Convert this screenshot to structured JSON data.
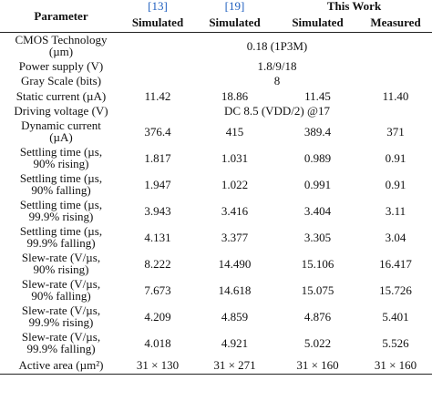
{
  "header": {
    "parameter_label": "Parameter",
    "ref1": "[13]",
    "ref2": "[19]",
    "this_work": "This Work",
    "col_labels": [
      "Simulated",
      "Simulated",
      "Simulated",
      "Measured"
    ]
  },
  "rows": [
    {
      "param": [
        "CMOS Technology",
        "(µm)"
      ],
      "span": "0.18 (1P3M)"
    },
    {
      "param": [
        "Power supply (V)"
      ],
      "span": "1.8/9/18"
    },
    {
      "param": [
        "Gray Scale (bits)"
      ],
      "span": "8"
    },
    {
      "param": [
        "Static current (µA)"
      ],
      "values": [
        "11.42",
        "18.86",
        "11.45",
        "11.40"
      ]
    },
    {
      "param": [
        "Driving voltage (V)"
      ],
      "span": "DC 8.5 (VDD/2) @17"
    },
    {
      "param": [
        "Dynamic current",
        "(µA)"
      ],
      "values": [
        "376.4",
        "415",
        "389.4",
        "371"
      ]
    },
    {
      "param": [
        "Settling time (µs,",
        "90% rising)"
      ],
      "values": [
        "1.817",
        "1.031",
        "0.989",
        "0.91"
      ]
    },
    {
      "param": [
        "Settling time (µs,",
        "90% falling)"
      ],
      "values": [
        "1.947",
        "1.022",
        "0.991",
        "0.91"
      ]
    },
    {
      "param": [
        "Settling time (µs,",
        "99.9% rising)"
      ],
      "values": [
        "3.943",
        "3.416",
        "3.404",
        "3.11"
      ]
    },
    {
      "param": [
        "Settling time (µs,",
        "99.9% falling)"
      ],
      "values": [
        "4.131",
        "3.377",
        "3.305",
        "3.04"
      ]
    },
    {
      "param": [
        "Slew-rate (V/µs,",
        "90% rising)"
      ],
      "values": [
        "8.222",
        "14.490",
        "15.106",
        "16.417"
      ]
    },
    {
      "param": [
        "Slew-rate (V/µs,",
        "90% falling)"
      ],
      "values": [
        "7.673",
        "14.618",
        "15.075",
        "15.726"
      ]
    },
    {
      "param": [
        "Slew-rate (V/µs,",
        "99.9% rising)"
      ],
      "values": [
        "4.209",
        "4.859",
        "4.876",
        "5.401"
      ]
    },
    {
      "param": [
        "Slew-rate (V/µs,",
        "99.9% falling)"
      ],
      "values": [
        "4.018",
        "4.921",
        "5.022",
        "5.526"
      ]
    },
    {
      "param": [
        "Active area (µm²)"
      ],
      "values": [
        "31 × 130",
        "31 × 271",
        "31 × 160",
        "31 × 160"
      ]
    }
  ]
}
